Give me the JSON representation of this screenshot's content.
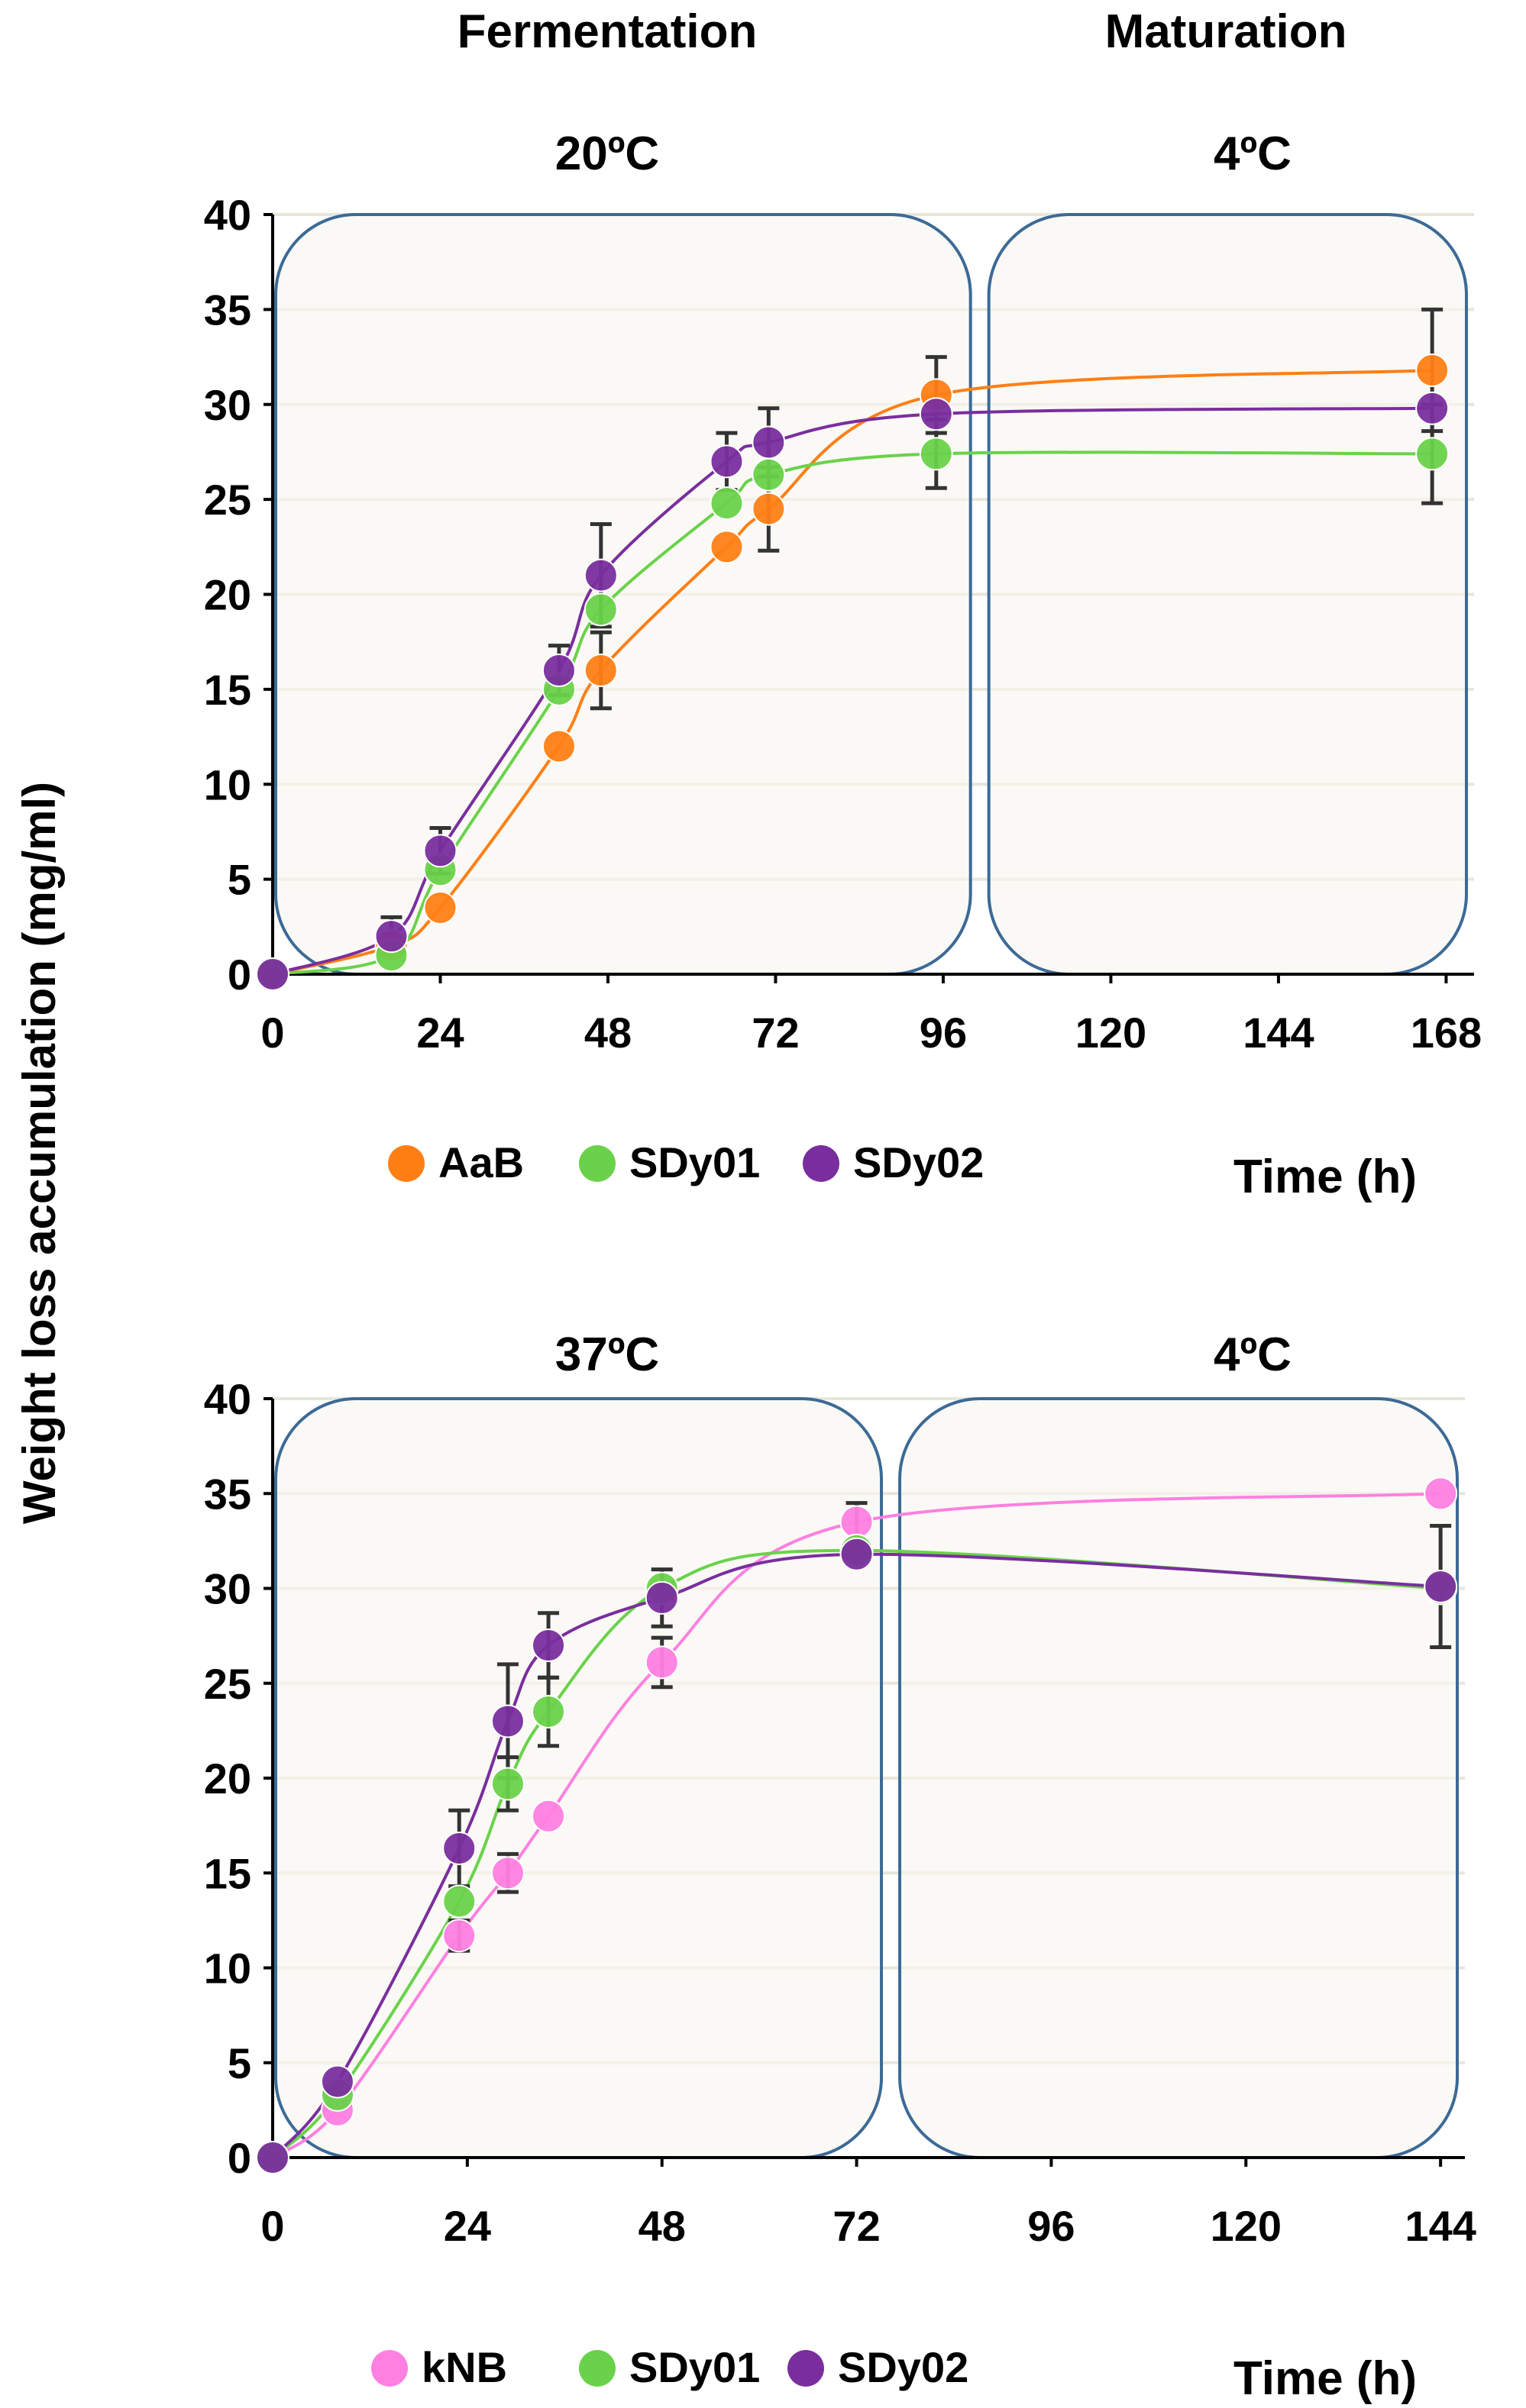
{
  "header": {
    "left_phase": "Fermentation",
    "right_phase": "Maturation"
  },
  "shared_ylabel": "Weight loss accumulation (mg/ml)",
  "colors": {
    "AaB": "#ff7f15",
    "SDy01": "#6ad24a",
    "SDy02": "#7a2e9e",
    "kNB": "#ff80e0",
    "panel_fill": "#f8f6f0",
    "panel_border": "#3c6a96",
    "grid": "#e8e6da"
  },
  "chart_data": [
    {
      "type": "line",
      "id": "top",
      "left_temp": "20ºC",
      "right_temp": "4ºC",
      "xlabel": "Time (h)",
      "ylabel": "Weight loss accumulation (mg/ml)",
      "x_ticks": [
        0,
        24,
        48,
        72,
        96,
        120,
        144,
        168
      ],
      "x_tick_labels": [
        "0",
        "24",
        "48",
        "72",
        "96",
        "120",
        "144",
        "168"
      ],
      "xlim": [
        0,
        172
      ],
      "ylim": [
        0,
        40
      ],
      "y_ticks": [
        0,
        5,
        10,
        15,
        20,
        25,
        30,
        35,
        40
      ],
      "y_tick_labels": [
        "0",
        "5",
        "10",
        "15",
        "20",
        "25",
        "30",
        "35",
        "40"
      ],
      "grid": true,
      "phase_boundary_x": 101,
      "legend": [
        "AaB",
        "SDy01",
        "SDy02"
      ],
      "series": [
        {
          "name": "AaB",
          "x": [
            0,
            17,
            24,
            41,
            47,
            65,
            71,
            95,
            166
          ],
          "y": [
            0,
            1.5,
            3.5,
            12,
            16,
            22.5,
            24.5,
            30.5,
            31.8
          ],
          "err": [
            0,
            0,
            0,
            0,
            2,
            0,
            2.2,
            2.0,
            3.2
          ]
        },
        {
          "name": "SDy01",
          "x": [
            0,
            17,
            24,
            41,
            47,
            65,
            71,
            95,
            166
          ],
          "y": [
            0,
            1.0,
            5.5,
            15,
            19.2,
            24.8,
            26.3,
            27.4,
            27.4
          ],
          "err": [
            0,
            0,
            0,
            0,
            0,
            0,
            0,
            1.8,
            2.6
          ]
        },
        {
          "name": "SDy02",
          "x": [
            0,
            17,
            24,
            41,
            47,
            65,
            71,
            95,
            166
          ],
          "y": [
            0,
            2.0,
            6.5,
            16.0,
            21.0,
            27.0,
            28.0,
            29.5,
            29.8
          ],
          "err": [
            0,
            1.0,
            1.2,
            1.3,
            2.7,
            1.5,
            1.8,
            0,
            0
          ]
        }
      ]
    },
    {
      "type": "line",
      "id": "bottom",
      "left_temp": "37ºC",
      "right_temp": "4ºC",
      "xlabel": "Time (h)",
      "ylabel": "Weight loss accumulation (mg/ml)",
      "x_ticks": [
        0,
        24,
        48,
        72,
        96,
        120,
        144
      ],
      "x_tick_labels": [
        "0",
        "24",
        "48",
        "72",
        "96",
        "120",
        "144"
      ],
      "xlim": [
        0,
        147
      ],
      "ylim": [
        0,
        40
      ],
      "y_ticks": [
        0,
        5,
        10,
        15,
        20,
        25,
        30,
        35,
        40
      ],
      "y_tick_labels": [
        "0",
        "5",
        "10",
        "15",
        "20",
        "25",
        "30",
        "35",
        "40"
      ],
      "grid": true,
      "phase_boundary_x": 76,
      "legend": [
        "kNB",
        "SDy01",
        "SDy02"
      ],
      "series": [
        {
          "name": "kNB",
          "x": [
            0,
            8,
            23,
            29,
            34,
            48,
            72,
            144
          ],
          "y": [
            0,
            2.5,
            11.7,
            15.0,
            18.0,
            26.1,
            33.5,
            35.0
          ],
          "err": [
            0,
            0,
            0.8,
            1.0,
            0,
            1.3,
            1.0,
            0
          ]
        },
        {
          "name": "SDy01",
          "x": [
            0,
            8,
            23,
            29,
            34,
            48,
            72,
            144
          ],
          "y": [
            0,
            3.3,
            13.5,
            19.7,
            23.5,
            30.0,
            32.0,
            30.0
          ],
          "err": [
            0,
            0,
            0,
            1.4,
            1.8,
            0,
            0,
            0
          ]
        },
        {
          "name": "SDy02",
          "x": [
            0,
            8,
            23,
            29,
            34,
            48,
            72,
            144
          ],
          "y": [
            0,
            4.0,
            16.3,
            23.0,
            27.0,
            29.5,
            31.8,
            30.1
          ],
          "err": [
            0,
            0,
            2.0,
            3.0,
            1.7,
            1.5,
            0,
            3.2
          ]
        }
      ]
    }
  ]
}
